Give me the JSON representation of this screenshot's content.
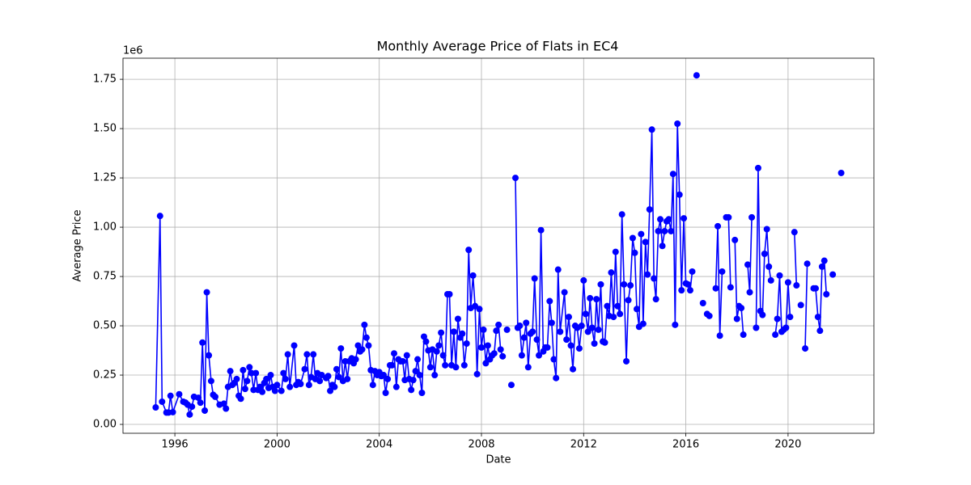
{
  "chart_data": {
    "type": "line",
    "title": "Monthly Average Price of Flats in EC4",
    "x_label": "Date",
    "y_label": "Average Price",
    "y_offset_text": "1e6",
    "color": "#0000ff",
    "grid": true,
    "xlim": [
      1993.97,
      2023.36
    ],
    "ylim": [
      -0.045,
      1.857
    ],
    "xticks": [
      1996,
      2000,
      2004,
      2008,
      2012,
      2016,
      2020
    ],
    "yticks": [
      {
        "value": 0,
        "label": "0.00"
      },
      {
        "value": 0.25,
        "label": "0.25"
      },
      {
        "value": 0.5,
        "label": "0.50"
      },
      {
        "value": 0.75,
        "label": "0.75"
      },
      {
        "value": 1,
        "label": "1.00"
      },
      {
        "value": 1.25,
        "label": "1.25"
      },
      {
        "value": 1.5,
        "label": "1.50"
      },
      {
        "value": 1.75,
        "label": "1.75"
      }
    ],
    "x": [
      1995.25,
      1995.42,
      1995.5,
      1995.67,
      1995.75,
      1995.83,
      1995.92,
      1996.17,
      1996.33,
      1996.42,
      1996.5,
      1996.58,
      1996.67,
      1996.75,
      1996.92,
      1997.0,
      1997.08,
      1997.17,
      1997.25,
      1997.33,
      1997.42,
      1997.5,
      1997.58,
      1997.75,
      1997.92,
      1998.0,
      1998.08,
      1998.17,
      1998.25,
      1998.33,
      1998.42,
      1998.5,
      1998.58,
      1998.67,
      1998.75,
      1998.83,
      1998.92,
      1999.0,
      1999.08,
      1999.17,
      1999.25,
      1999.33,
      1999.42,
      1999.5,
      1999.58,
      1999.67,
      1999.75,
      1999.83,
      1999.92,
      2000.0,
      2000.17,
      2000.25,
      2000.33,
      2000.42,
      2000.5,
      2000.67,
      2000.75,
      2000.83,
      2000.92,
      2001.08,
      2001.17,
      2001.25,
      2001.33,
      2001.42,
      2001.5,
      2001.58,
      2001.67,
      2001.75,
      2001.92,
      2002.0,
      2002.08,
      2002.17,
      2002.25,
      2002.33,
      2002.42,
      2002.5,
      2002.58,
      2002.67,
      2002.75,
      2002.83,
      2002.92,
      2003.0,
      2003.08,
      2003.17,
      2003.25,
      2003.33,
      2003.42,
      2003.5,
      2003.58,
      2003.67,
      2003.75,
      2003.83,
      2003.92,
      2004.0,
      2004.08,
      2004.17,
      2004.25,
      2004.33,
      2004.42,
      2004.5,
      2004.58,
      2004.67,
      2004.75,
      2004.83,
      2004.92,
      2005.0,
      2005.08,
      2005.17,
      2005.25,
      2005.33,
      2005.42,
      2005.5,
      2005.58,
      2005.67,
      2005.75,
      2005.83,
      2005.92,
      2006.0,
      2006.08,
      2006.17,
      2006.25,
      2006.33,
      2006.42,
      2006.5,
      2006.58,
      2006.67,
      2006.75,
      2006.83,
      2006.92,
      2007.0,
      2007.08,
      2007.17,
      2007.25,
      2007.33,
      2007.42,
      2007.5,
      2007.58,
      2007.67,
      2007.75,
      2007.83,
      2007.92,
      2008.0,
      2008.08,
      2008.17,
      2008.25,
      2008.33,
      2008.42,
      2008.5,
      2008.58,
      2008.67,
      2008.75,
      2008.83,
      2008.92,
      2009.0,
      2009.08,
      2009.17,
      2009.25,
      2009.33,
      2009.42,
      2009.5,
      2009.58,
      2009.67,
      2009.75,
      2009.83,
      2009.92,
      2010.0,
      2010.08,
      2010.17,
      2010.25,
      2010.33,
      2010.42,
      2010.5,
      2010.58,
      2010.67,
      2010.75,
      2010.83,
      2010.92,
      2011.0,
      2011.08,
      2011.25,
      2011.33,
      2011.42,
      2011.5,
      2011.58,
      2011.67,
      2011.75,
      2011.83,
      2011.92,
      2012.0,
      2012.08,
      2012.17,
      2012.25,
      2012.33,
      2012.42,
      2012.5,
      2012.58,
      2012.67,
      2012.75,
      2012.83,
      2012.92,
      2013.0,
      2013.08,
      2013.17,
      2013.25,
      2013.33,
      2013.42,
      2013.5,
      2013.58,
      2013.67,
      2013.75,
      2013.83,
      2013.92,
      2014.0,
      2014.08,
      2014.17,
      2014.25,
      2014.33,
      2014.42,
      2014.5,
      2014.58,
      2014.67,
      2014.75,
      2014.83,
      2014.92,
      2015.0,
      2015.08,
      2015.17,
      2015.25,
      2015.33,
      2015.42,
      2015.5,
      2015.58,
      2015.67,
      2015.75,
      2015.83,
      2015.92,
      2016.0,
      2016.08,
      2016.17,
      2016.25,
      2016.33,
      2016.42,
      2016.5,
      2016.67,
      2016.75,
      2016.83,
      2016.92,
      2017.0,
      2017.17,
      2017.25,
      2017.33,
      2017.42,
      2017.5,
      2017.58,
      2017.67,
      2017.75,
      2017.83,
      2017.92,
      2018.0,
      2018.08,
      2018.17,
      2018.25,
      2018.33,
      2018.42,
      2018.5,
      2018.58,
      2018.67,
      2018.75,
      2018.83,
      2018.92,
      2019.0,
      2019.08,
      2019.17,
      2019.25,
      2019.33,
      2019.42,
      2019.5,
      2019.58,
      2019.67,
      2019.75,
      2019.83,
      2019.92,
      2020.0,
      2020.08,
      2020.17,
      2020.25,
      2020.33,
      2020.42,
      2020.5,
      2020.58,
      2020.67,
      2020.75,
      2020.92,
      2021.0,
      2021.08,
      2021.17,
      2021.25,
      2021.33,
      2021.42,
      2021.5,
      2021.58,
      2021.75,
      2021.92,
      2022.08
    ],
    "values": [
      0.086,
      1.057,
      0.115,
      0.06,
      0.06,
      0.145,
      0.062,
      0.153,
      0.115,
      0.11,
      0.1,
      0.05,
      0.09,
      0.14,
      0.135,
      0.11,
      0.415,
      0.07,
      0.67,
      0.35,
      0.22,
      0.15,
      0.14,
      0.1,
      0.105,
      0.08,
      0.19,
      0.27,
      0.2,
      0.21,
      0.23,
      0.145,
      0.13,
      0.275,
      0.18,
      0.22,
      0.29,
      0.26,
      0.175,
      0.26,
      0.175,
      0.19,
      0.165,
      0.21,
      0.23,
      0.185,
      0.25,
      0.19,
      0.17,
      0.2,
      0.17,
      0.26,
      0.23,
      0.355,
      0.19,
      0.4,
      0.2,
      0.215,
      0.205,
      0.28,
      0.355,
      0.2,
      0.24,
      0.355,
      0.23,
      0.26,
      0.22,
      0.25,
      0.235,
      0.245,
      0.17,
      0.2,
      0.19,
      0.28,
      0.24,
      0.385,
      0.22,
      0.32,
      0.23,
      0.32,
      0.335,
      0.31,
      0.33,
      0.4,
      0.37,
      0.38,
      0.505,
      0.44,
      0.4,
      0.275,
      0.2,
      0.27,
      0.25,
      0.265,
      0.245,
      0.25,
      0.16,
      0.23,
      0.3,
      0.3,
      0.36,
      0.19,
      0.33,
      0.32,
      0.32,
      0.225,
      0.35,
      0.23,
      0.175,
      0.225,
      0.27,
      0.33,
      0.25,
      0.16,
      0.445,
      0.42,
      0.375,
      0.29,
      0.38,
      0.25,
      0.37,
      0.4,
      0.465,
      0.35,
      0.3,
      0.66,
      0.66,
      0.3,
      0.47,
      0.29,
      0.535,
      0.44,
      0.46,
      0.3,
      0.41,
      0.885,
      0.59,
      0.755,
      0.6,
      0.255,
      0.585,
      0.39,
      0.48,
      0.31,
      0.4,
      0.33,
      0.35,
      0.36,
      0.475,
      0.505,
      0.38,
      0.345,
      null,
      0.48,
      null,
      0.2,
      null,
      1.25,
      0.49,
      0.5,
      0.35,
      0.44,
      0.515,
      0.29,
      0.46,
      0.47,
      0.74,
      0.43,
      0.35,
      0.985,
      0.37,
      0.39,
      0.39,
      0.625,
      0.515,
      0.33,
      0.235,
      0.785,
      0.47,
      0.67,
      0.43,
      0.545,
      0.4,
      0.28,
      0.5,
      0.49,
      0.385,
      0.5,
      0.73,
      0.56,
      0.47,
      0.64,
      0.49,
      0.41,
      0.635,
      0.48,
      0.71,
      0.42,
      0.415,
      0.6,
      0.55,
      0.77,
      0.545,
      0.875,
      0.6,
      0.56,
      1.065,
      0.71,
      0.32,
      0.63,
      0.705,
      0.945,
      0.87,
      0.585,
      0.495,
      0.965,
      0.51,
      0.925,
      0.76,
      1.09,
      1.495,
      0.74,
      0.635,
      0.98,
      1.04,
      0.905,
      0.98,
      1.03,
      1.04,
      0.98,
      1.27,
      0.505,
      1.525,
      1.165,
      0.68,
      1.045,
      0.715,
      0.71,
      0.68,
      0.775,
      null,
      1.77,
      null,
      0.615,
      null,
      0.56,
      0.55,
      null,
      0.69,
      1.005,
      0.45,
      0.775,
      null,
      1.05,
      1.05,
      0.695,
      null,
      0.935,
      0.535,
      0.6,
      0.59,
      0.455,
      null,
      0.81,
      0.67,
      1.05,
      null,
      0.49,
      1.3,
      0.575,
      0.555,
      0.865,
      0.99,
      0.8,
      0.73,
      null,
      0.455,
      0.535,
      0.755,
      0.47,
      0.48,
      0.49,
      0.72,
      0.545,
      null,
      0.975,
      0.705,
      null,
      0.605,
      null,
      0.385,
      0.815,
      null,
      0.69,
      0.69,
      0.545,
      0.475,
      0.8,
      0.83,
      0.66,
      null,
      0.76,
      null,
      1.275
    ]
  }
}
